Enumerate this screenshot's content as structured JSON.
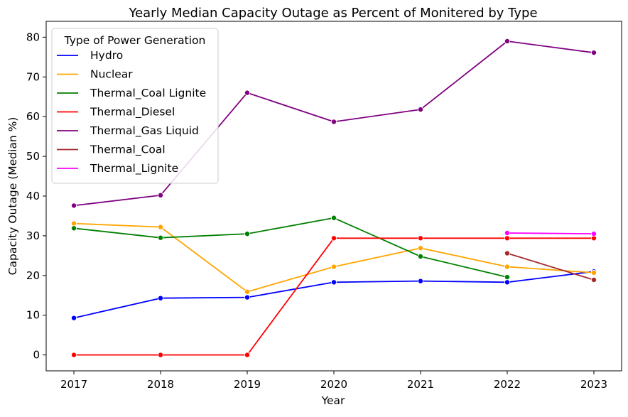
{
  "chart_data": {
    "type": "line",
    "title": "Yearly Median Capacity Outage as Percent of Monitered by Type",
    "xlabel": "Year",
    "ylabel": "Capacity Outage (Median %)",
    "x": [
      2017,
      2018,
      2019,
      2020,
      2021,
      2022,
      2023
    ],
    "xlim": [
      2016.68,
      2023.32
    ],
    "ylim": [
      -4,
      84
    ],
    "yticks": [
      0,
      10,
      20,
      30,
      40,
      50,
      60,
      70,
      80
    ],
    "grid": false,
    "legend": {
      "title": "Type of Power Generation",
      "placement": "top-left"
    },
    "series": [
      {
        "name": "Hydro",
        "color": "#0000ff",
        "points": [
          [
            2017,
            9.3
          ],
          [
            2018,
            14.3
          ],
          [
            2019,
            14.5
          ],
          [
            2020,
            18.3
          ],
          [
            2021,
            18.6
          ],
          [
            2022,
            18.3
          ],
          [
            2023,
            21.0
          ]
        ]
      },
      {
        "name": "Nuclear",
        "color": "#ffa500",
        "points": [
          [
            2017,
            33.1
          ],
          [
            2018,
            32.2
          ],
          [
            2019,
            15.9
          ],
          [
            2020,
            22.2
          ],
          [
            2021,
            26.9
          ],
          [
            2022,
            22.2
          ],
          [
            2023,
            20.7
          ]
        ]
      },
      {
        "name": "Thermal_Coal Lignite",
        "color": "#008000",
        "points": [
          [
            2017,
            31.9
          ],
          [
            2018,
            29.5
          ],
          [
            2019,
            30.5
          ],
          [
            2020,
            34.5
          ],
          [
            2021,
            24.8
          ],
          [
            2022,
            19.6
          ]
        ]
      },
      {
        "name": "Thermal_Diesel",
        "color": "#ff0000",
        "points": [
          [
            2017,
            0
          ],
          [
            2018,
            0
          ],
          [
            2019,
            0
          ],
          [
            2020,
            29.4
          ],
          [
            2021,
            29.4
          ],
          [
            2022,
            29.4
          ],
          [
            2023,
            29.4
          ]
        ]
      },
      {
        "name": "Thermal_Gas Liquid",
        "color": "#800080",
        "points": [
          [
            2017,
            37.6
          ],
          [
            2018,
            40.2
          ],
          [
            2019,
            66.0
          ],
          [
            2020,
            58.7
          ],
          [
            2021,
            61.8
          ],
          [
            2022,
            79.0
          ],
          [
            2023,
            76.1
          ]
        ]
      },
      {
        "name": "Thermal_Coal",
        "color": "#a52a2a",
        "points": [
          [
            2022,
            25.6
          ],
          [
            2023,
            18.9
          ]
        ]
      },
      {
        "name": "Thermal_Lignite",
        "color": "#ff00ff",
        "points": [
          [
            2022,
            30.7
          ],
          [
            2023,
            30.5
          ]
        ]
      }
    ]
  }
}
